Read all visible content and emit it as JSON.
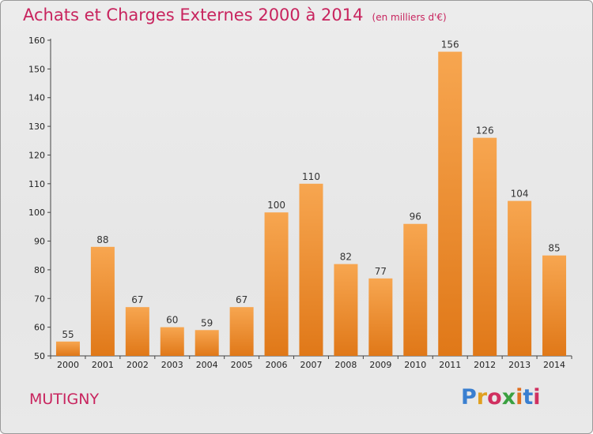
{
  "title": "Achats et Charges Externes 2000 à 2014",
  "subtitle": "(en milliers d'€)",
  "city": "MUTIGNY",
  "logo": {
    "letters": [
      "P",
      "r",
      "o",
      "x",
      "i",
      "t",
      "i"
    ],
    "colors": [
      "#3a7fd0",
      "#e0a020",
      "#d03060",
      "#3aa040",
      "#e07020",
      "#3a7fd0",
      "#d03060"
    ]
  },
  "chart_data": {
    "type": "bar",
    "categories": [
      "2000",
      "2001",
      "2002",
      "2003",
      "2004",
      "2005",
      "2006",
      "2007",
      "2008",
      "2009",
      "2010",
      "2011",
      "2012",
      "2013",
      "2014"
    ],
    "values": [
      55,
      88,
      67,
      60,
      59,
      67,
      100,
      110,
      82,
      77,
      96,
      156,
      126,
      104,
      85
    ],
    "ylim": [
      50,
      160
    ],
    "yticks": [
      50,
      60,
      70,
      80,
      90,
      100,
      110,
      120,
      130,
      140,
      150,
      160
    ],
    "grid": false,
    "bar_color": "#f08a30",
    "label_color": "#c8245e"
  }
}
